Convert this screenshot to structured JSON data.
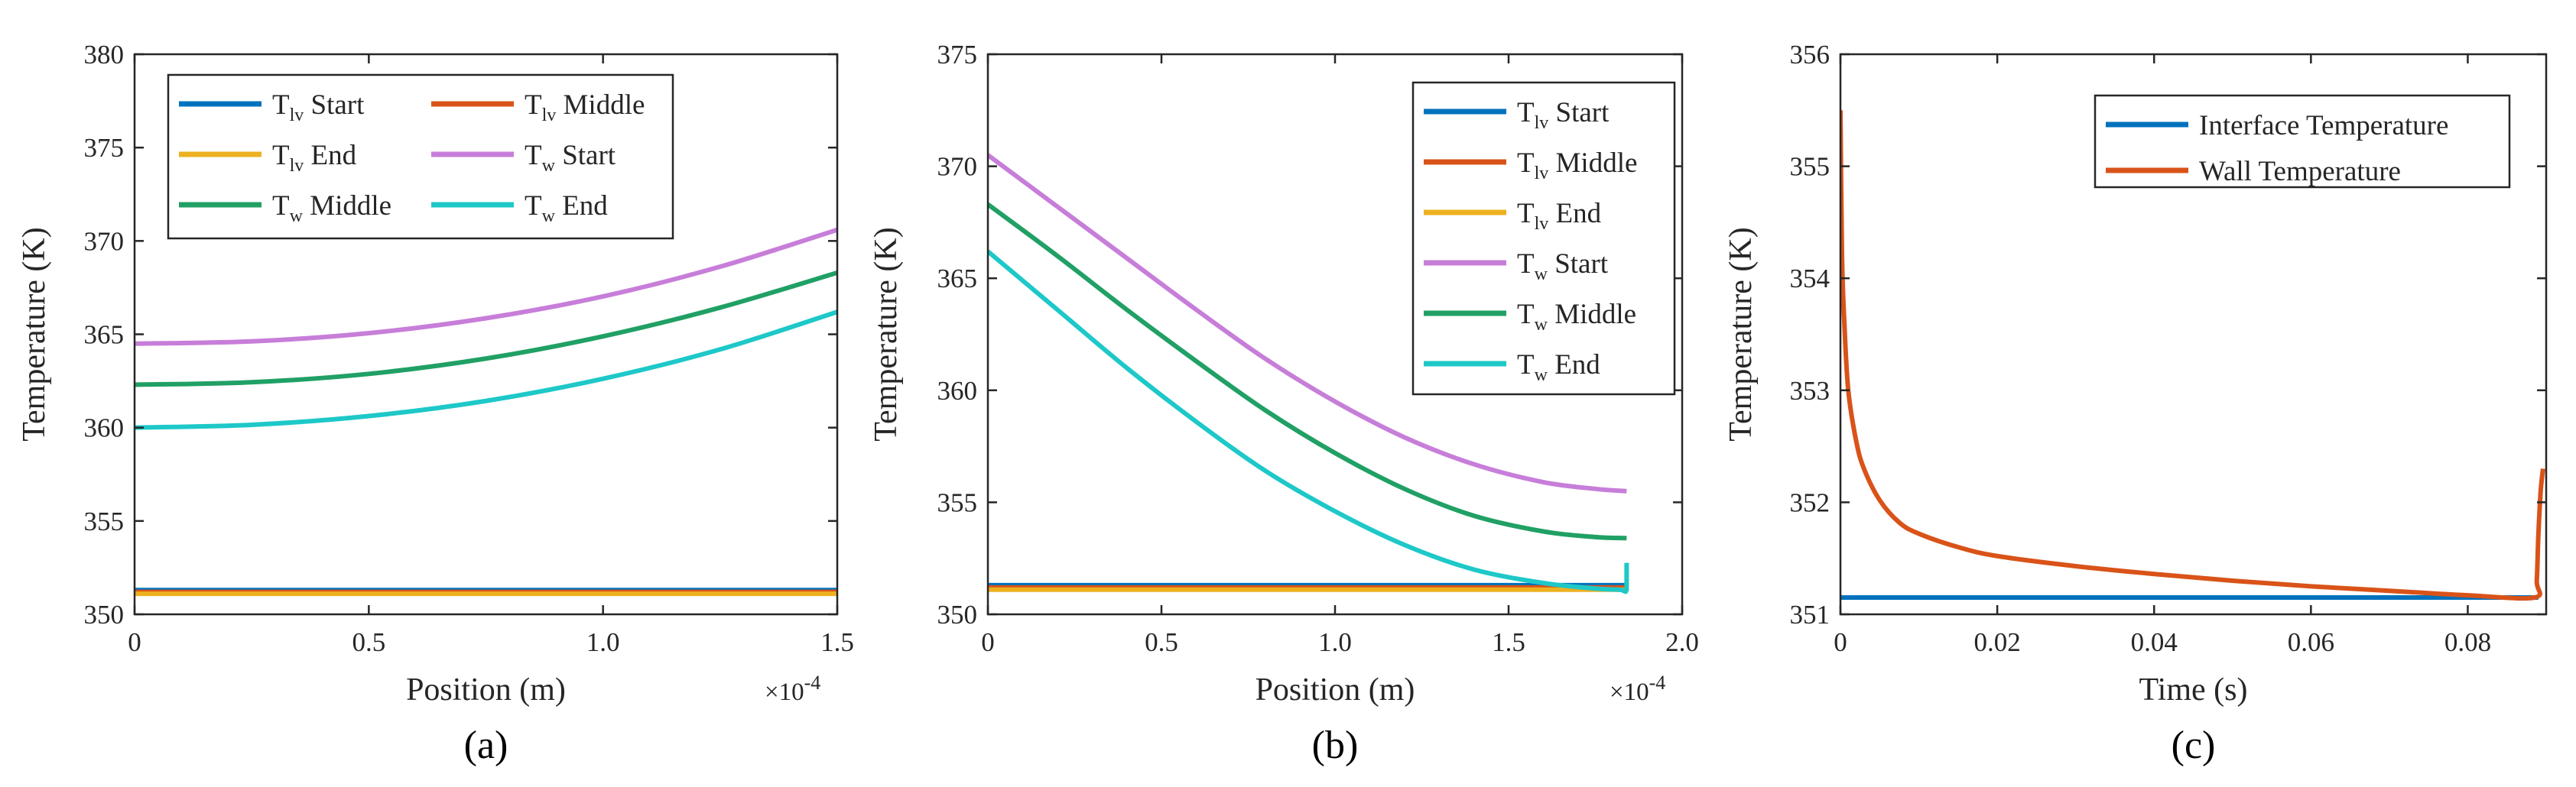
{
  "chart_data": [
    {
      "type": "line",
      "caption": "(a)",
      "xlabel": "Position (m)",
      "ylabel": "Temperature (K)",
      "x_multiplier": "×10",
      "x_multiplier_exp": "-4",
      "xlim": [
        0,
        1.5
      ],
      "ylim": [
        350,
        380
      ],
      "xticks": [
        0,
        0.5,
        1,
        1.5
      ],
      "xtick_labels": [
        "0",
        "0.5",
        "1.0",
        "1.5"
      ],
      "yticks": [
        350,
        355,
        360,
        365,
        370,
        375,
        380
      ],
      "ytick_labels": [
        "350",
        "355",
        "360",
        "365",
        "370",
        "375",
        "380"
      ],
      "legend_position": "top-left",
      "legend_columns": 2,
      "series": [
        {
          "name": "T",
          "sub": "lv",
          "suffix": " Start",
          "color": "#0072bd",
          "x": [
            0,
            1.5
          ],
          "y": [
            351.3,
            351.3
          ]
        },
        {
          "name": "T",
          "sub": "lv",
          "suffix": " Middle",
          "color": "#d95319",
          "x": [
            0,
            1.5
          ],
          "y": [
            351.2,
            351.2
          ]
        },
        {
          "name": "T",
          "sub": "lv",
          "suffix": " End",
          "color": "#edb120",
          "x": [
            0,
            1.5
          ],
          "y": [
            351.1,
            351.1
          ]
        },
        {
          "name": "T",
          "sub": "w",
          "suffix": " Start",
          "color": "#c77ed9",
          "x": [
            0,
            0.25,
            0.5,
            0.75,
            1.0,
            1.25,
            1.5
          ],
          "y": [
            364.5,
            364.62,
            365.06,
            365.86,
            367.03,
            368.62,
            370.6
          ]
        },
        {
          "name": "T",
          "sub": "w",
          "suffix": " Middle",
          "color": "#20a065",
          "x": [
            0,
            0.25,
            0.5,
            0.75,
            1.0,
            1.25,
            1.5
          ],
          "y": [
            362.3,
            362.43,
            362.88,
            363.7,
            364.89,
            366.43,
            368.3
          ]
        },
        {
          "name": "T",
          "sub": "w",
          "suffix": " End",
          "color": "#1ec8c8",
          "x": [
            0,
            0.25,
            0.5,
            0.75,
            1.0,
            1.25,
            1.5
          ],
          "y": [
            360.0,
            360.15,
            360.62,
            361.43,
            362.62,
            364.19,
            366.2
          ]
        }
      ]
    },
    {
      "type": "line",
      "caption": "(b)",
      "xlabel": "Position (m)",
      "ylabel": "Temperature (K)",
      "x_multiplier": "×10",
      "x_multiplier_exp": "-4",
      "xlim": [
        0,
        2.0
      ],
      "ylim": [
        350,
        375
      ],
      "xticks": [
        0,
        0.5,
        1,
        1.5,
        2
      ],
      "xtick_labels": [
        "0",
        "0.5",
        "1.0",
        "1.5",
        "2.0"
      ],
      "yticks": [
        350,
        355,
        360,
        365,
        370,
        375
      ],
      "ytick_labels": [
        "350",
        "355",
        "360",
        "365",
        "370",
        "375"
      ],
      "legend_position": "top-right",
      "legend_columns": 1,
      "series": [
        {
          "name": "T",
          "sub": "lv",
          "suffix": " Start",
          "color": "#0072bd",
          "x": [
            0,
            1.84
          ],
          "y": [
            351.3,
            351.3
          ]
        },
        {
          "name": "T",
          "sub": "lv",
          "suffix": " Middle",
          "color": "#d95319",
          "x": [
            0,
            1.84
          ],
          "y": [
            351.2,
            351.2
          ]
        },
        {
          "name": "T",
          "sub": "lv",
          "suffix": " End",
          "color": "#edb120",
          "x": [
            0,
            1.84
          ],
          "y": [
            351.1,
            351.1
          ]
        },
        {
          "name": "T",
          "sub": "w",
          "suffix": " Start",
          "color": "#c77ed9",
          "x": [
            0,
            0.2,
            0.4,
            0.6,
            0.8,
            1.0,
            1.2,
            1.4,
            1.6,
            1.75,
            1.84
          ],
          "y": [
            370.5,
            368.2,
            365.9,
            363.6,
            361.4,
            359.5,
            357.9,
            356.7,
            355.9,
            355.6,
            355.5
          ]
        },
        {
          "name": "T",
          "sub": "w",
          "suffix": " Middle",
          "color": "#20a065",
          "x": [
            0,
            0.2,
            0.4,
            0.6,
            0.8,
            1.0,
            1.2,
            1.4,
            1.6,
            1.75,
            1.84
          ],
          "y": [
            368.3,
            366.0,
            363.6,
            361.3,
            359.1,
            357.2,
            355.6,
            354.4,
            353.7,
            353.45,
            353.4
          ]
        },
        {
          "name": "T",
          "sub": "w",
          "suffix": " End",
          "color": "#1ec8c8",
          "x": [
            0,
            0.2,
            0.4,
            0.6,
            0.8,
            1.0,
            1.2,
            1.4,
            1.6,
            1.75,
            1.82,
            1.84,
            1.84
          ],
          "y": [
            366.2,
            363.6,
            361.0,
            358.6,
            356.4,
            354.6,
            353.1,
            352.0,
            351.4,
            351.15,
            351.1,
            351.1,
            352.3
          ]
        }
      ]
    },
    {
      "type": "line",
      "caption": "(c)",
      "xlabel": "Time (s)",
      "ylabel": "Temperature (K)",
      "xlim": [
        0,
        0.09
      ],
      "ylim": [
        351,
        356
      ],
      "xticks": [
        0,
        0.02,
        0.04,
        0.06,
        0.08
      ],
      "xtick_labels": [
        "0",
        "0.02",
        "0.04",
        "0.06",
        "0.08"
      ],
      "yticks": [
        351,
        352,
        353,
        354,
        355,
        356
      ],
      "ytick_labels": [
        "351",
        "352",
        "353",
        "354",
        "355",
        "356"
      ],
      "legend_position": "top-right",
      "legend_columns": 1,
      "series": [
        {
          "name": "Interface Temperature",
          "sub": "",
          "suffix": "",
          "color": "#0072bd",
          "x": [
            0,
            0.089
          ],
          "y": [
            351.15,
            351.15
          ]
        },
        {
          "name": "Wall Temperature",
          "sub": "",
          "suffix": "",
          "color": "#d95319",
          "x": [
            0,
            0.0002,
            0.0005,
            0.001,
            0.002,
            0.003,
            0.005,
            0.0075,
            0.01,
            0.015,
            0.02,
            0.03,
            0.04,
            0.05,
            0.06,
            0.07,
            0.08,
            0.0885,
            0.0888,
            0.089,
            0.0893,
            0.0896
          ],
          "y": [
            355.5,
            354.2,
            353.6,
            353.0,
            352.55,
            352.3,
            352.02,
            351.82,
            351.72,
            351.6,
            351.52,
            351.43,
            351.36,
            351.3,
            351.25,
            351.21,
            351.17,
            351.15,
            351.3,
            351.7,
            352.1,
            352.3
          ]
        }
      ]
    }
  ]
}
